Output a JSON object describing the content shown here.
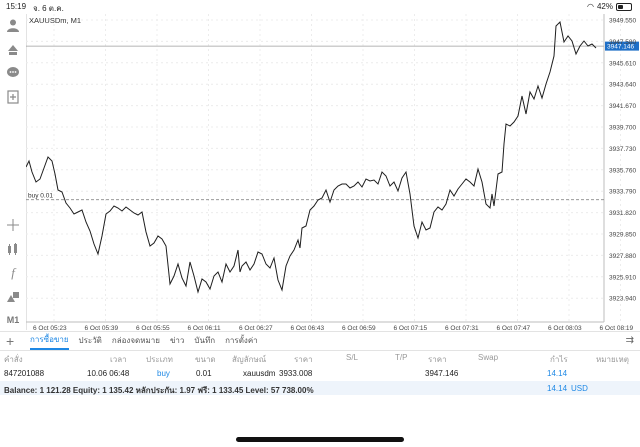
{
  "status_bar": {
    "time": "15:19",
    "date": "จ. 6 ต.ค.",
    "battery": "42%",
    "battery_level": 0.42
  },
  "chart": {
    "symbol_label": "XAUUSDm, M1",
    "buy_label": "buy 0.01",
    "current_price_label": "3947.146",
    "price_axis": [
      "3949.550",
      "3947.580",
      "3945.610",
      "3943.640",
      "3941.670",
      "3939.700",
      "3937.730",
      "3935.760",
      "3933.790",
      "3931.820",
      "3929.850",
      "3927.880",
      "3925.910",
      "3923.940"
    ],
    "time_axis": [
      "6 Oct 05:23",
      "6 Oct 05:39",
      "6 Oct 05:55",
      "6 Oct 06:11",
      "6 Oct 06:27",
      "6 Oct 06:43",
      "6 Oct 06:59",
      "6 Oct 07:15",
      "6 Oct 07:31",
      "6 Oct 07:47",
      "6 Oct 08:03",
      "6 Oct 08:19"
    ]
  },
  "toolbar": {
    "timeframe": "M1"
  },
  "tabs": [
    "การซื้อขาย",
    "ประวัติ",
    "กล่องจดหมาย",
    "ข่าว",
    "บันทึก",
    "การตั้งค่า"
  ],
  "table": {
    "headers": [
      "คำสั่ง",
      "เวลา",
      "ประเภท",
      "ขนาด",
      "สัญลักษณ์",
      "ราคา",
      "S/L",
      "T/P",
      "ราคา",
      "Swap",
      "กำไร",
      "หมายเหตุ"
    ],
    "row": {
      "order": "847201088",
      "time": "10.06 06:48",
      "type": "buy",
      "size": "0.01",
      "symbol": "xauusdm",
      "price": "3933.008",
      "current_price": "3947.146",
      "profit": "14.14"
    }
  },
  "balance_bar": {
    "text": "Balance: 1 121.28 Equity: 1 135.42 หลักประกัน: 1.97 ฟรี: 1 133.45 Level: 57 738.00%",
    "profit": "14.14",
    "currency": "USD"
  },
  "colors": {
    "accent": "#1e88e5",
    "price_line": "#1e1e1e",
    "grid": "#e6e6e6"
  }
}
